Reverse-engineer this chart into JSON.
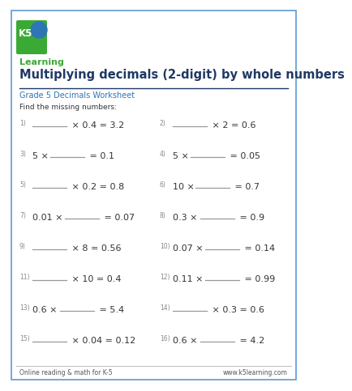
{
  "title": "Multiplying decimals (2-digit) by whole numbers",
  "subtitle": "Grade 5 Decimals Worksheet",
  "instruction": "Find the missing numbers:",
  "problems_left": [
    {
      "num": "1)",
      "before": "",
      "after": "× 0.4 = 3.2"
    },
    {
      "num": "3)",
      "before": "5 ×",
      "after": "= 0.1"
    },
    {
      "num": "5)",
      "before": "",
      "after": "× 0.2 = 0.8"
    },
    {
      "num": "7)",
      "before": "0.01 ×",
      "after": "= 0.07"
    },
    {
      "num": "9)",
      "before": "",
      "after": "× 8 = 0.56"
    },
    {
      "num": "11)",
      "before": "",
      "after": "× 10 = 0.4"
    },
    {
      "num": "13)",
      "before": "0.6 ×",
      "after": "= 5.4"
    },
    {
      "num": "15)",
      "before": "",
      "after": "× 0.04 = 0.12"
    }
  ],
  "problems_right": [
    {
      "num": "2)",
      "before": "",
      "after": "× 2 = 0.6"
    },
    {
      "num": "4)",
      "before": "5 ×",
      "after": "= 0.05"
    },
    {
      "num": "6)",
      "before": "10 ×",
      "after": "= 0.7"
    },
    {
      "num": "8)",
      "before": "0.3 ×",
      "after": "= 0.9"
    },
    {
      "num": "10)",
      "before": "0.07 ×",
      "after": "= 0.14"
    },
    {
      "num": "12)",
      "before": "0.11 ×",
      "after": "= 0.99"
    },
    {
      "num": "14)",
      "before": "",
      "after": "× 0.3 = 0.6"
    },
    {
      "num": "16)",
      "before": "0.6 ×",
      "after": "= 4.2"
    }
  ],
  "footer_left": "Online reading & math for K-5",
  "footer_right": "www.k5learning.com",
  "bg_color": "#ffffff",
  "border_color": "#5b9bd5",
  "title_color": "#1f3864",
  "subtitle_color": "#2e75b6",
  "problem_num_color": "#888888",
  "text_color": "#333333",
  "footer_color": "#555555",
  "underline_color": "#999999",
  "logo_green": "#3aaa35",
  "logo_blue": "#2e75b6"
}
